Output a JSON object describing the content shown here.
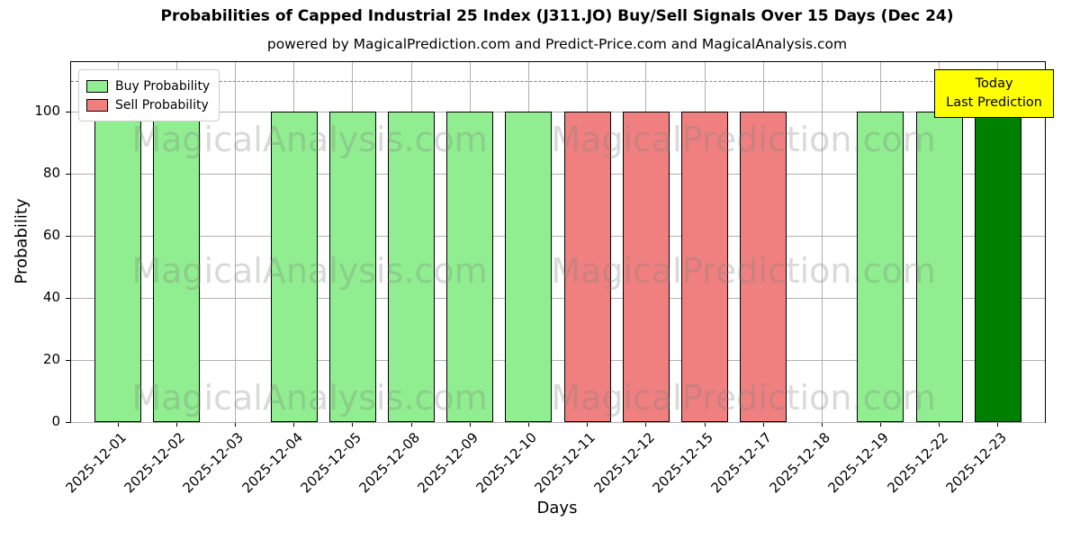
{
  "chart_data": {
    "type": "bar",
    "title": "Probabilities of Capped Industrial 25 Index (J311.JO) Buy/Sell Signals Over 15 Days (Dec 24)",
    "subtitle": "powered by MagicalPrediction.com and Predict-Price.com and MagicalAnalysis.com",
    "xlabel": "Days",
    "ylabel": "Probability",
    "ylim": [
      0,
      116
    ],
    "yticks": [
      0,
      20,
      40,
      60,
      80,
      100
    ],
    "grid": true,
    "legend_position": "upper left",
    "dashed_threshold_y": 110,
    "categories": [
      "2025-12-01",
      "2025-12-02",
      "2025-12-03",
      "2025-12-04",
      "2025-12-05",
      "2025-12-08",
      "2025-12-09",
      "2025-12-10",
      "2025-12-11",
      "2025-12-12",
      "2025-12-15",
      "2025-12-17",
      "2025-12-18",
      "2025-12-19",
      "2025-12-22",
      "2025-12-23"
    ],
    "values": [
      100,
      100,
      0,
      100,
      100,
      100,
      100,
      100,
      100,
      100,
      100,
      100,
      0,
      100,
      100,
      100
    ],
    "bar_types": [
      "buy",
      "buy",
      "none",
      "buy",
      "buy",
      "buy",
      "buy",
      "buy",
      "sell",
      "sell",
      "sell",
      "sell",
      "none",
      "buy",
      "buy",
      "today"
    ],
    "colors": {
      "buy": "#90EE90",
      "sell": "#F08080",
      "today": "#008000",
      "edge": "#000000",
      "grid": "#b0b0b0",
      "dashed": "#808080"
    },
    "legend": [
      {
        "label": "Buy Probability",
        "type": "buy",
        "color": "#90EE90"
      },
      {
        "label": "Sell Probability",
        "type": "sell",
        "color": "#F08080"
      }
    ]
  },
  "annotation": {
    "line1": "Today",
    "line2": "Last Prediction",
    "bg_color": "#FFFF00"
  },
  "watermarks": [
    {
      "text": "MagicalAnalysis.com"
    },
    {
      "text": "MagicalPrediction.com"
    }
  ]
}
